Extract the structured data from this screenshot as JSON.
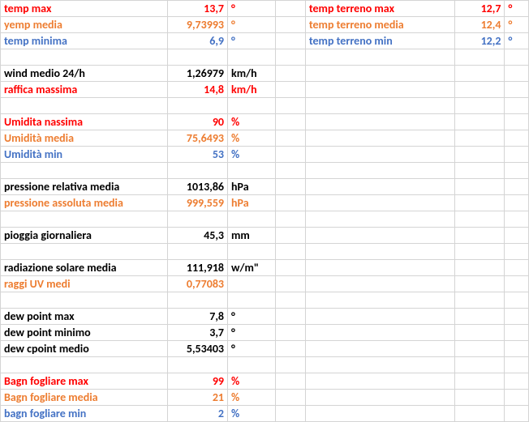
{
  "colors": {
    "red": "#ff0000",
    "amber": "#ed7d31",
    "blue": "#4472c4",
    "grid": "#d4d4d4"
  },
  "rows": [
    {
      "a": "temp max",
      "av": "13,7",
      "au": "°",
      "c": "red",
      "x": "temp terreno max",
      "xv": "12,7",
      "xu": "°",
      "xc": "red"
    },
    {
      "a": "yemp media",
      "av": "9,73993",
      "au": "°",
      "c": "amber",
      "x": "temp terreno media",
      "xv": "12,4",
      "xu": "°",
      "xc": "amber"
    },
    {
      "a": "temp minima",
      "av": "6,9",
      "au": "°",
      "c": "blue",
      "x": "temp terreno min",
      "xv": "12,2",
      "xu": "°",
      "xc": "blue"
    },
    {
      "blank": true
    },
    {
      "a": "wind medio  24/h",
      "av": "1,26979",
      "au": "km/h",
      "c": "black"
    },
    {
      "a": "raffica massima",
      "av": "14,8",
      "au": "km/h",
      "c": "red"
    },
    {
      "blank": true
    },
    {
      "a": "Umidita nassima",
      "av": "90",
      "au": "%",
      "c": "red"
    },
    {
      "a": "Umidità media",
      "av": "75,6493",
      "au": "%",
      "c": "amber"
    },
    {
      "a": "Umidità min",
      "av": "53",
      "au": "%",
      "c": "blue"
    },
    {
      "blank": true
    },
    {
      "a": "pressione relativa media",
      "av": "1013,86",
      "au": "hPa",
      "c": "black"
    },
    {
      "a": "pressione assoluta media",
      "av": "999,559",
      "au": "hPa",
      "c": "amber"
    },
    {
      "blank": true
    },
    {
      "a": "pioggia giornaliera",
      "av": "45,3",
      "au": "mm",
      "c": "black"
    },
    {
      "blank": true
    },
    {
      "a": "radiazione solare media",
      "av": "111,918",
      "au": "w/m\"",
      "c": "black"
    },
    {
      "a": "raggi UV medi",
      "av": "0,77083",
      "au": "",
      "c": "amber"
    },
    {
      "blank": true
    },
    {
      "a": "dew point max",
      "av": "7,8",
      "au": "°",
      "c": "black"
    },
    {
      "a": "dew point minimo",
      "av": "3,7",
      "au": "°",
      "c": "black"
    },
    {
      "a": "dew cpoint medio",
      "av": "5,53403",
      "au": "°",
      "c": "black"
    },
    {
      "blank": true
    },
    {
      "a": "Bagn fogliare max",
      "av": "99",
      "au": "%",
      "c": "red"
    },
    {
      "a": "Bagn fogliare media",
      "av": "21",
      "au": "%",
      "c": "amber"
    },
    {
      "a": "bagn fogliare min",
      "av": "2",
      "au": "%",
      "c": "blue"
    }
  ]
}
